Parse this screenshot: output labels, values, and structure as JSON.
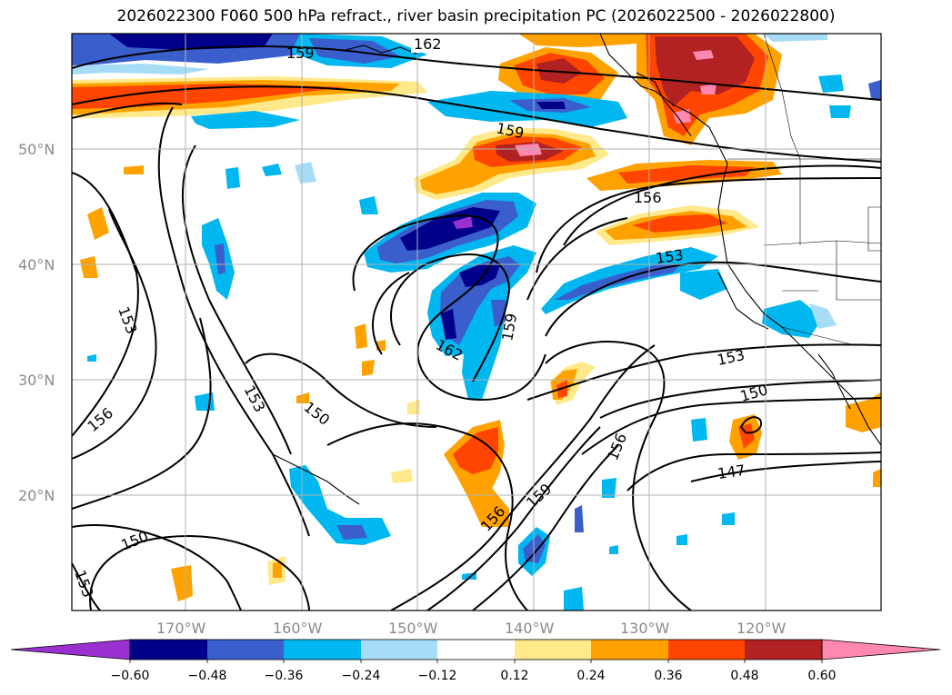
{
  "title": "2026022300 F060 500 hPa refract., river basin precipitation PC (2026022500 - 2026022800)",
  "lat_labels": [
    "50°N",
    "40°N",
    "30°N",
    "20°N"
  ],
  "lon_labels": [
    "170°W",
    "160°W",
    "150°W",
    "140°W",
    "130°W",
    "120°W"
  ],
  "colorbar": {
    "ticks": [
      "−0.60",
      "−0.48",
      "−0.36",
      "−0.24",
      "−0.12",
      "0.12",
      "0.24",
      "0.36",
      "0.48",
      "0.60"
    ],
    "colors": {
      "lt_m060": "#9b30d0",
      "m060_m048": "#00008b",
      "m048_m036": "#3a5fcd",
      "m036_m024": "#00b7f0",
      "m024_m012": "#a7dcf7",
      "m012_012": "#ffffff",
      "p012_024": "#ffe98a",
      "p024_036": "#ffa200",
      "p036_048": "#ff4500",
      "p048_060": "#b22222",
      "gt_060": "#ff88b0"
    }
  },
  "contour_labels": [
    {
      "id": "c162a",
      "text": "162"
    },
    {
      "id": "c159a",
      "text": "159"
    },
    {
      "id": "c159b",
      "text": "159"
    },
    {
      "id": "c156a",
      "text": "156"
    },
    {
      "id": "c153a",
      "text": "153"
    },
    {
      "id": "c153b",
      "text": "153"
    },
    {
      "id": "c153c",
      "text": "153"
    },
    {
      "id": "c162b",
      "text": "162"
    },
    {
      "id": "c159c",
      "text": "159"
    },
    {
      "id": "c150a",
      "text": "150"
    },
    {
      "id": "c156b",
      "text": "156"
    },
    {
      "id": "c153d",
      "text": "153"
    },
    {
      "id": "c150b",
      "text": "150"
    },
    {
      "id": "c156c",
      "text": "156"
    },
    {
      "id": "c159d",
      "text": "159"
    },
    {
      "id": "c156d",
      "text": "156"
    },
    {
      "id": "c147a",
      "text": "147"
    },
    {
      "id": "c150c",
      "text": "150"
    },
    {
      "id": "c153e",
      "text": "153"
    }
  ]
}
